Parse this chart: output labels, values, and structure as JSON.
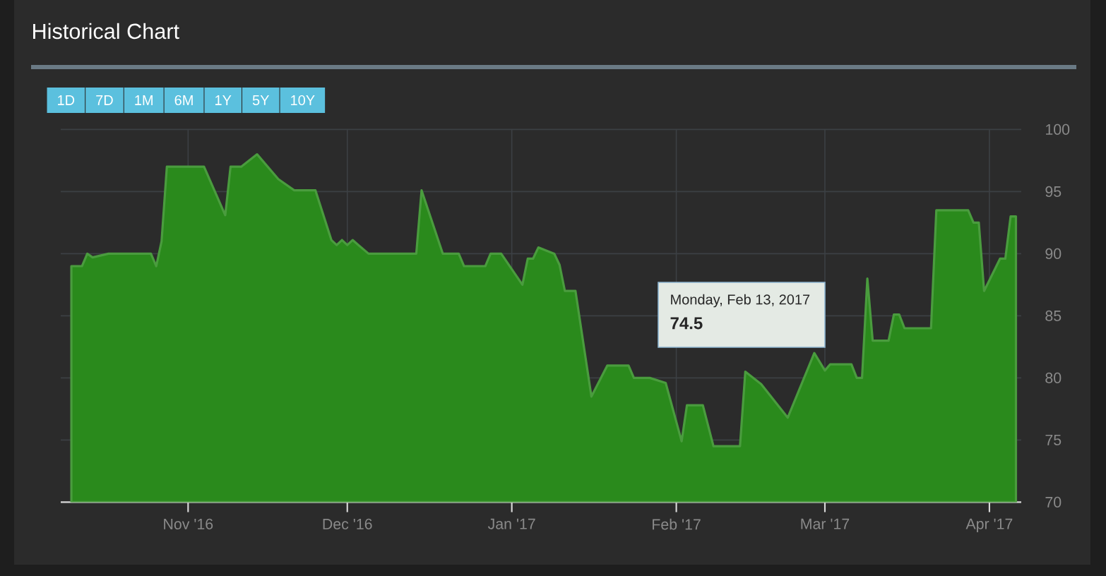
{
  "chart_data": {
    "type": "area",
    "title": "Historical Chart",
    "color": "#2a8a1c",
    "x": [
      "2016-10-10",
      "2016-10-12",
      "2016-10-13",
      "2016-10-14",
      "2016-10-17",
      "2016-10-25",
      "2016-10-26",
      "2016-10-27",
      "2016-10-28",
      "2016-11-04",
      "2016-11-08",
      "2016-11-09",
      "2016-11-11",
      "2016-11-14",
      "2016-11-18",
      "2016-11-21",
      "2016-11-25",
      "2016-11-28",
      "2016-11-29",
      "2016-11-30",
      "2016-12-01",
      "2016-12-02",
      "2016-12-05",
      "2016-12-14",
      "2016-12-15",
      "2016-12-19",
      "2016-12-22",
      "2016-12-23",
      "2016-12-27",
      "2016-12-28",
      "2016-12-30",
      "2017-01-03",
      "2017-01-04",
      "2017-01-05",
      "2017-01-06",
      "2017-01-09",
      "2017-01-10",
      "2017-01-11",
      "2017-01-13",
      "2017-01-16",
      "2017-01-19",
      "2017-01-23",
      "2017-01-24",
      "2017-01-27",
      "2017-01-30",
      "2017-02-02",
      "2017-02-03",
      "2017-02-06",
      "2017-02-08",
      "2017-02-13",
      "2017-02-14",
      "2017-02-17",
      "2017-02-22",
      "2017-02-27",
      "2017-03-01",
      "2017-03-02",
      "2017-03-06",
      "2017-03-07",
      "2017-03-08",
      "2017-03-09",
      "2017-03-10",
      "2017-03-13",
      "2017-03-14",
      "2017-03-15",
      "2017-03-16",
      "2017-03-21",
      "2017-03-22",
      "2017-03-28",
      "2017-03-29",
      "2017-03-30",
      "2017-03-31",
      "2017-04-03",
      "2017-04-04",
      "2017-04-05",
      "2017-04-06"
    ],
    "values": [
      89.0,
      89.0,
      90.0,
      89.7,
      90.0,
      90.0,
      89.0,
      91.0,
      97.0,
      97.0,
      93.1,
      97.0,
      97.0,
      98.0,
      96.0,
      95.1,
      95.1,
      91.1,
      90.7,
      91.1,
      90.7,
      91.1,
      90.0,
      90.0,
      95.1,
      90.0,
      90.0,
      89.0,
      89.0,
      90.0,
      90.0,
      87.5,
      89.6,
      89.6,
      90.5,
      90.0,
      89.1,
      87.0,
      87.0,
      78.5,
      81.0,
      81.0,
      80.0,
      80.0,
      79.6,
      74.9,
      77.8,
      77.8,
      74.5,
      74.5,
      80.5,
      79.5,
      76.8,
      82.0,
      80.6,
      81.1,
      81.1,
      80.0,
      80.0,
      88.0,
      83.0,
      83.0,
      85.1,
      85.1,
      84.0,
      84.0,
      93.5,
      93.5,
      92.5,
      92.5,
      87.0,
      89.6,
      89.6,
      93.0,
      93.0
    ],
    "xlim": [
      "2016-10-08",
      "2017-04-07"
    ],
    "xticks": [
      {
        "value": "2016-11-01",
        "label": "Nov '16"
      },
      {
        "value": "2016-12-01",
        "label": "Dec '16"
      },
      {
        "value": "2017-01-01",
        "label": "Jan '17"
      },
      {
        "value": "2017-02-01",
        "label": "Feb '17"
      },
      {
        "value": "2017-03-01",
        "label": "Mar '17"
      },
      {
        "value": "2017-04-01",
        "label": "Apr '17"
      }
    ],
    "ylim": [
      70,
      100
    ],
    "yticks": [
      70,
      75,
      80,
      85,
      90,
      95,
      100
    ],
    "grid": true,
    "annotations": [
      "1D",
      "7D",
      "1M",
      "6M",
      "1Y",
      "5Y",
      "10Y",
      "Monday, Feb 13, 2017",
      "74.5"
    ]
  }
}
